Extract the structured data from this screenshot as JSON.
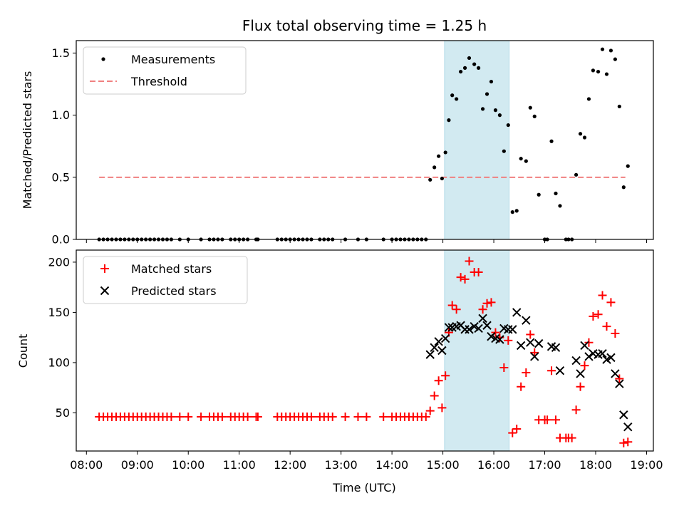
{
  "chart_data": [
    {
      "type": "scatter",
      "title": "Flux total observing time = 1.25 h",
      "xlabel": "",
      "ylabel": "Matched/Predicted stars",
      "ylim": [
        0,
        1.6
      ],
      "yticks": [
        "0.0",
        "0.5",
        "1.0",
        "1.5"
      ],
      "highlight_span": [
        "15:02",
        "16:18"
      ],
      "legend": {
        "placement": "top-left",
        "entries": [
          "Measurements",
          "Threshold"
        ]
      },
      "threshold": {
        "name": "Threshold",
        "value": 0.5,
        "x": [
          "08:15",
          "18:35"
        ],
        "color": "#f08080"
      },
      "series": [
        {
          "name": "Measurements",
          "color": "#000000",
          "marker": "dot",
          "points": [
            [
              "08:15",
              0
            ],
            [
              "08:20",
              0
            ],
            [
              "08:25",
              0
            ],
            [
              "08:30",
              0
            ],
            [
              "08:35",
              0
            ],
            [
              "08:40",
              0
            ],
            [
              "08:45",
              0
            ],
            [
              "08:50",
              0
            ],
            [
              "08:55",
              0
            ],
            [
              "09:00",
              0
            ],
            [
              "09:05",
              0
            ],
            [
              "09:10",
              0
            ],
            [
              "09:15",
              0
            ],
            [
              "09:20",
              0
            ],
            [
              "09:25",
              0
            ],
            [
              "09:30",
              0
            ],
            [
              "09:35",
              0
            ],
            [
              "09:40",
              0
            ],
            [
              "09:50",
              0
            ],
            [
              "10:00",
              0
            ],
            [
              "10:15",
              0
            ],
            [
              "10:25",
              0
            ],
            [
              "10:30",
              0
            ],
            [
              "10:35",
              0
            ],
            [
              "10:40",
              0
            ],
            [
              "10:50",
              0
            ],
            [
              "10:55",
              0
            ],
            [
              "11:00",
              0
            ],
            [
              "11:05",
              0
            ],
            [
              "11:10",
              0
            ],
            [
              "11:20",
              0
            ],
            [
              "11:22",
              0
            ],
            [
              "11:45",
              0
            ],
            [
              "11:50",
              0
            ],
            [
              "11:55",
              0
            ],
            [
              "12:00",
              0
            ],
            [
              "12:05",
              0
            ],
            [
              "12:10",
              0
            ],
            [
              "12:15",
              0
            ],
            [
              "12:20",
              0
            ],
            [
              "12:25",
              0
            ],
            [
              "12:35",
              0
            ],
            [
              "12:40",
              0
            ],
            [
              "12:45",
              0
            ],
            [
              "12:50",
              0
            ],
            [
              "13:05",
              0
            ],
            [
              "13:20",
              0
            ],
            [
              "13:30",
              0
            ],
            [
              "13:50",
              0
            ],
            [
              "14:00",
              0
            ],
            [
              "14:05",
              0
            ],
            [
              "14:10",
              0
            ],
            [
              "14:15",
              0
            ],
            [
              "14:20",
              0
            ],
            [
              "14:25",
              0
            ],
            [
              "14:30",
              0
            ],
            [
              "14:35",
              0
            ],
            [
              "14:40",
              0
            ],
            [
              "14:45",
              0.48
            ],
            [
              "14:50",
              0.58
            ],
            [
              "14:55",
              0.67
            ],
            [
              "14:59",
              0.49
            ],
            [
              "15:03",
              0.7
            ],
            [
              "15:07",
              0.96
            ],
            [
              "15:11",
              1.16
            ],
            [
              "15:16",
              1.13
            ],
            [
              "15:21",
              1.35
            ],
            [
              "15:26",
              1.38
            ],
            [
              "15:31",
              1.46
            ],
            [
              "15:37",
              1.41
            ],
            [
              "15:42",
              1.38
            ],
            [
              "15:47",
              1.05
            ],
            [
              "15:52",
              1.17
            ],
            [
              "15:57",
              1.27
            ],
            [
              "16:02",
              1.04
            ],
            [
              "16:07",
              1.0
            ],
            [
              "16:12",
              0.71
            ],
            [
              "16:17",
              0.92
            ],
            [
              "16:22",
              0.22
            ],
            [
              "16:27",
              0.23
            ],
            [
              "16:32",
              0.65
            ],
            [
              "16:38",
              0.63
            ],
            [
              "16:43",
              1.06
            ],
            [
              "16:48",
              0.99
            ],
            [
              "16:53",
              0.36
            ],
            [
              "17:00",
              0
            ],
            [
              "17:03",
              0
            ],
            [
              "17:08",
              0.79
            ],
            [
              "17:13",
              0.37
            ],
            [
              "17:18",
              0.27
            ],
            [
              "17:25",
              0
            ],
            [
              "17:28",
              0
            ],
            [
              "17:32",
              0
            ],
            [
              "17:37",
              0.52
            ],
            [
              "17:42",
              0.85
            ],
            [
              "17:47",
              0.82
            ],
            [
              "17:52",
              1.13
            ],
            [
              "17:57",
              1.36
            ],
            [
              "18:03",
              1.35
            ],
            [
              "18:08",
              1.53
            ],
            [
              "18:13",
              1.33
            ],
            [
              "18:18",
              1.52
            ],
            [
              "18:23",
              1.45
            ],
            [
              "18:28",
              1.07
            ],
            [
              "18:33",
              0.42
            ],
            [
              "18:38",
              0.59
            ]
          ]
        }
      ]
    },
    {
      "type": "scatter",
      "title": "",
      "xlabel": "Time (UTC)",
      "ylabel": "Count",
      "ylim": [
        12,
        212
      ],
      "yticks": [
        "50",
        "100",
        "150",
        "200"
      ],
      "x_range": [
        "07:48",
        "19:08"
      ],
      "xticks": [
        "08:00",
        "09:00",
        "10:00",
        "11:00",
        "12:00",
        "13:00",
        "14:00",
        "15:00",
        "16:00",
        "17:00",
        "18:00",
        "19:00"
      ],
      "highlight_span": [
        "15:02",
        "16:18"
      ],
      "legend": {
        "placement": "top-left",
        "entries": [
          "Matched stars",
          "Predicted stars"
        ]
      },
      "series": [
        {
          "name": "Matched stars",
          "color": "#ff0000",
          "marker": "plus",
          "points": [
            [
              "08:15",
              46
            ],
            [
              "08:20",
              46
            ],
            [
              "08:25",
              46
            ],
            [
              "08:30",
              46
            ],
            [
              "08:35",
              46
            ],
            [
              "08:40",
              46
            ],
            [
              "08:45",
              46
            ],
            [
              "08:50",
              46
            ],
            [
              "08:55",
              46
            ],
            [
              "09:00",
              46
            ],
            [
              "09:05",
              46
            ],
            [
              "09:10",
              46
            ],
            [
              "09:15",
              46
            ],
            [
              "09:20",
              46
            ],
            [
              "09:25",
              46
            ],
            [
              "09:30",
              46
            ],
            [
              "09:35",
              46
            ],
            [
              "09:40",
              46
            ],
            [
              "09:50",
              46
            ],
            [
              "10:00",
              46
            ],
            [
              "10:15",
              46
            ],
            [
              "10:25",
              46
            ],
            [
              "10:30",
              46
            ],
            [
              "10:35",
              46
            ],
            [
              "10:40",
              46
            ],
            [
              "10:50",
              46
            ],
            [
              "10:55",
              46
            ],
            [
              "11:00",
              46
            ],
            [
              "11:05",
              46
            ],
            [
              "11:10",
              46
            ],
            [
              "11:20",
              46
            ],
            [
              "11:22",
              46
            ],
            [
              "11:45",
              46
            ],
            [
              "11:50",
              46
            ],
            [
              "11:55",
              46
            ],
            [
              "12:00",
              46
            ],
            [
              "12:05",
              46
            ],
            [
              "12:10",
              46
            ],
            [
              "12:15",
              46
            ],
            [
              "12:20",
              46
            ],
            [
              "12:25",
              46
            ],
            [
              "12:35",
              46
            ],
            [
              "12:40",
              46
            ],
            [
              "12:45",
              46
            ],
            [
              "12:50",
              46
            ],
            [
              "13:05",
              46
            ],
            [
              "13:20",
              46
            ],
            [
              "13:30",
              46
            ],
            [
              "13:50",
              46
            ],
            [
              "14:00",
              46
            ],
            [
              "14:05",
              46
            ],
            [
              "14:10",
              46
            ],
            [
              "14:15",
              46
            ],
            [
              "14:20",
              46
            ],
            [
              "14:25",
              46
            ],
            [
              "14:30",
              46
            ],
            [
              "14:35",
              46
            ],
            [
              "14:40",
              46
            ],
            [
              "14:45",
              52
            ],
            [
              "14:50",
              67
            ],
            [
              "14:55",
              82
            ],
            [
              "14:59",
              55
            ],
            [
              "15:03",
              87
            ],
            [
              "15:07",
              130
            ],
            [
              "15:11",
              157
            ],
            [
              "15:16",
              153
            ],
            [
              "15:21",
              185
            ],
            [
              "15:26",
              183
            ],
            [
              "15:31",
              201
            ],
            [
              "15:37",
              190
            ],
            [
              "15:42",
              190
            ],
            [
              "15:47",
              153
            ],
            [
              "15:52",
              159
            ],
            [
              "15:57",
              160
            ],
            [
              "16:02",
              130
            ],
            [
              "16:07",
              125
            ],
            [
              "16:12",
              95
            ],
            [
              "16:17",
              122
            ],
            [
              "16:22",
              30
            ],
            [
              "16:27",
              34
            ],
            [
              "16:32",
              76
            ],
            [
              "16:38",
              90
            ],
            [
              "16:43",
              128
            ],
            [
              "16:48",
              110
            ],
            [
              "16:53",
              43
            ],
            [
              "17:00",
              43
            ],
            [
              "17:03",
              43
            ],
            [
              "17:08",
              92
            ],
            [
              "17:13",
              43
            ],
            [
              "17:18",
              25
            ],
            [
              "17:25",
              25
            ],
            [
              "17:28",
              25
            ],
            [
              "17:32",
              25
            ],
            [
              "17:37",
              53
            ],
            [
              "17:42",
              76
            ],
            [
              "17:47",
              97
            ],
            [
              "17:52",
              120
            ],
            [
              "17:57",
              146
            ],
            [
              "18:03",
              148
            ],
            [
              "18:08",
              167
            ],
            [
              "18:13",
              136
            ],
            [
              "18:18",
              160
            ],
            [
              "18:23",
              129
            ],
            [
              "18:28",
              84
            ],
            [
              "18:33",
              20
            ],
            [
              "18:38",
              21
            ]
          ]
        },
        {
          "name": "Predicted stars",
          "color": "#000000",
          "marker": "cross",
          "points": [
            [
              "14:45",
              108
            ],
            [
              "14:50",
              115
            ],
            [
              "14:55",
              121
            ],
            [
              "14:59",
              112
            ],
            [
              "15:03",
              124
            ],
            [
              "15:07",
              135
            ],
            [
              "15:11",
              135
            ],
            [
              "15:16",
              136
            ],
            [
              "15:21",
              137
            ],
            [
              "15:26",
              133
            ],
            [
              "15:31",
              133
            ],
            [
              "15:37",
              136
            ],
            [
              "15:42",
              134
            ],
            [
              "15:47",
              144
            ],
            [
              "15:52",
              137
            ],
            [
              "15:57",
              126
            ],
            [
              "16:02",
              124
            ],
            [
              "16:07",
              123
            ],
            [
              "16:12",
              134
            ],
            [
              "16:17",
              133
            ],
            [
              "16:22",
              133
            ],
            [
              "16:27",
              150
            ],
            [
              "16:32",
              117
            ],
            [
              "16:38",
              142
            ],
            [
              "16:43",
              120
            ],
            [
              "16:48",
              106
            ],
            [
              "16:53",
              119
            ],
            [
              "17:08",
              116
            ],
            [
              "17:13",
              115
            ],
            [
              "17:18",
              92
            ],
            [
              "17:37",
              102
            ],
            [
              "17:42",
              89
            ],
            [
              "17:47",
              117
            ],
            [
              "17:52",
              106
            ],
            [
              "17:57",
              109
            ],
            [
              "18:03",
              108
            ],
            [
              "18:08",
              109
            ],
            [
              "18:13",
              103
            ],
            [
              "18:18",
              105
            ],
            [
              "18:23",
              89
            ],
            [
              "18:28",
              79
            ],
            [
              "18:33",
              48
            ],
            [
              "18:38",
              36
            ]
          ]
        }
      ]
    }
  ]
}
